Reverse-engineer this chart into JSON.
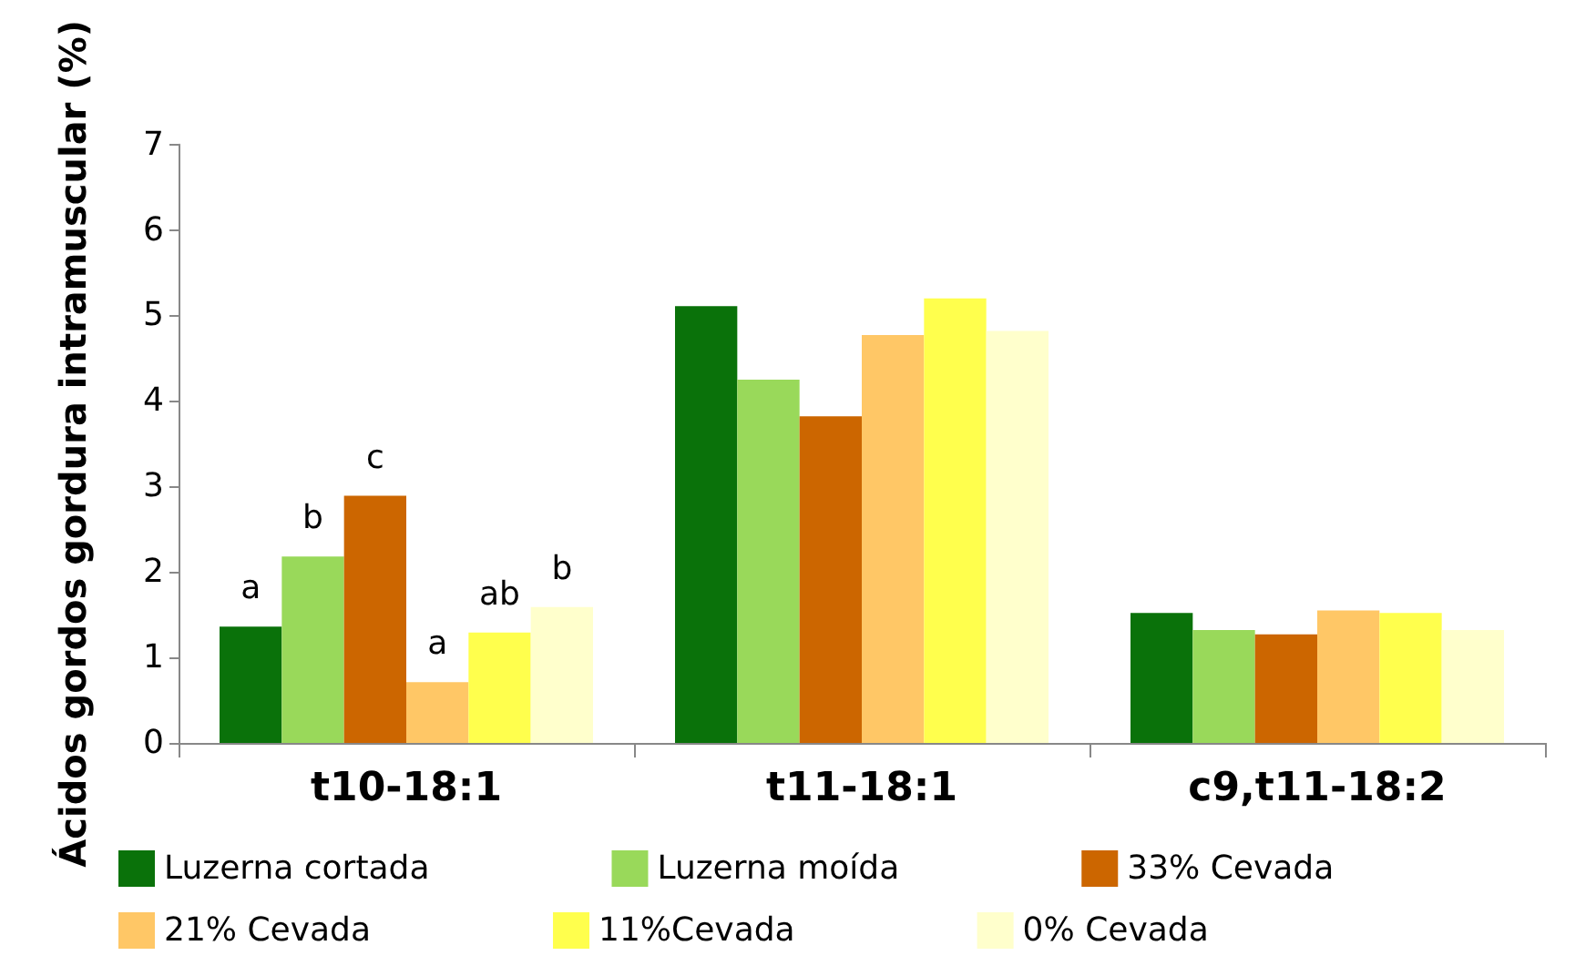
{
  "chart_data": {
    "type": "bar",
    "ylabel": "Ácidos gordos gordura intramuscular (%)",
    "categories": [
      "t10-18:1",
      "t11-18:1",
      "c9,t11-18:2"
    ],
    "series": [
      {
        "name": "Luzerna cortada",
        "color": "#0a720a",
        "values": [
          1.36,
          5.11,
          1.52
        ]
      },
      {
        "name": "Luzerna moída",
        "color": "#99d95a",
        "values": [
          2.18,
          4.25,
          1.32
        ]
      },
      {
        "name": "33% Cevada",
        "color": "#cc6600",
        "values": [
          2.89,
          3.82,
          1.27
        ]
      },
      {
        "name": "21% Cevada",
        "color": "#ffc766",
        "values": [
          0.71,
          4.77,
          1.55
        ]
      },
      {
        "name": "11%Cevada",
        "color": "#ffff4d",
        "values": [
          1.29,
          5.2,
          1.52
        ]
      },
      {
        "name": "0% Cevada",
        "color": "#ffffcc",
        "values": [
          1.59,
          4.82,
          1.32
        ]
      }
    ],
    "annotations": [
      "a",
      "b",
      "c",
      "a",
      "ab",
      "b"
    ],
    "ylim": [
      0,
      7
    ],
    "yticks": [
      0,
      1,
      2,
      3,
      4,
      5,
      6,
      7
    ],
    "grid": false,
    "legend": "bottom"
  }
}
